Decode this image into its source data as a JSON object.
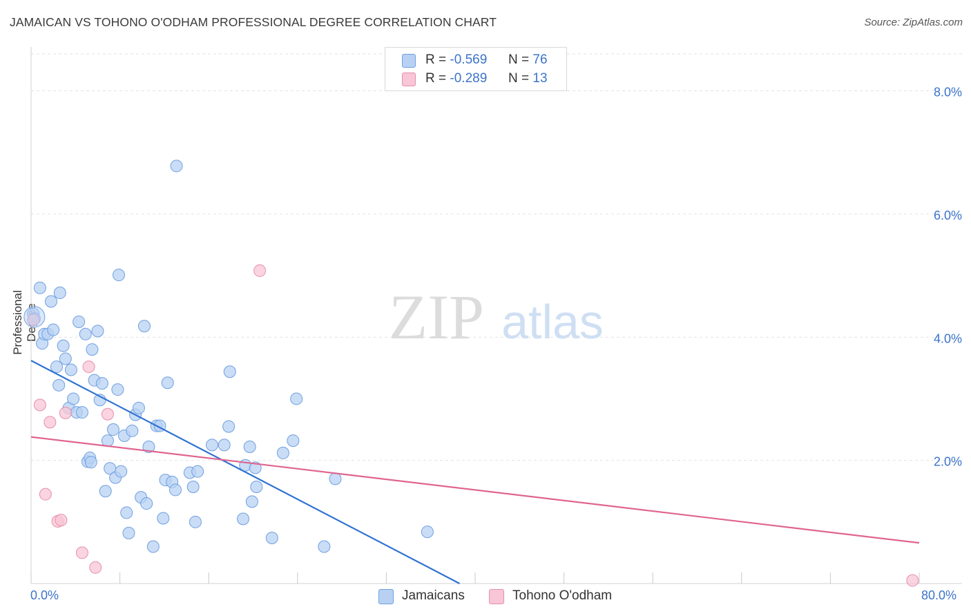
{
  "title": "JAMAICAN VS TOHONO O'ODHAM PROFESSIONAL DEGREE CORRELATION CHART",
  "source": "Source: ZipAtlas.com",
  "watermark": {
    "zip": "ZIP",
    "atlas": "atlas"
  },
  "legend_top": [
    {
      "r_label": "R =",
      "r_value": "-0.569",
      "n_label": "N =",
      "n_value": "76",
      "color": "#b8d1f3",
      "border": "#6e9fe0"
    },
    {
      "r_label": "R =",
      "r_value": "-0.289",
      "n_label": "N =",
      "n_value": "13",
      "color": "#f8c6d6",
      "border": "#e58fab"
    }
  ],
  "legend_bottom": [
    {
      "label": "Jamaicans",
      "color": "#b8d1f3",
      "border": "#6e9fe0"
    },
    {
      "label": "Tohono O'odham",
      "color": "#f8c6d6",
      "border": "#e58fab"
    }
  ],
  "chart_data": {
    "type": "scatter",
    "title": "JAMAICAN VS TOHONO O'ODHAM PROFESSIONAL DEGREE CORRELATION CHART",
    "xlabel": "",
    "ylabel": "Professional Degree",
    "xlim": [
      0,
      80
    ],
    "ylim": [
      0,
      8.6
    ],
    "x_tick_labels": [
      "0.0%",
      "80.0%"
    ],
    "y_ticks": [
      2,
      4,
      6,
      8
    ],
    "y_tick_labels": [
      "2.0%",
      "4.0%",
      "6.0%",
      "8.0%"
    ],
    "grid": true,
    "series": [
      {
        "name": "Jamaicans",
        "color": "#6e9fe0",
        "fill": "#b8d1f3",
        "trend": {
          "x": [
            0,
            38.6
          ],
          "y": [
            3.62,
            0
          ]
        },
        "points": [
          [
            0.2,
            4.38
          ],
          [
            0.3,
            4.3
          ],
          [
            0.8,
            4.8
          ],
          [
            1.0,
            3.9
          ],
          [
            1.2,
            4.05
          ],
          [
            1.5,
            4.05
          ],
          [
            1.8,
            4.58
          ],
          [
            2.0,
            4.12
          ],
          [
            2.3,
            3.52
          ],
          [
            2.5,
            3.22
          ],
          [
            2.6,
            4.72
          ],
          [
            2.9,
            3.86
          ],
          [
            3.1,
            3.65
          ],
          [
            3.4,
            2.85
          ],
          [
            3.6,
            3.47
          ],
          [
            3.8,
            3.0
          ],
          [
            4.1,
            2.78
          ],
          [
            4.3,
            4.25
          ],
          [
            4.6,
            2.78
          ],
          [
            4.9,
            4.05
          ],
          [
            5.1,
            1.98
          ],
          [
            5.3,
            2.04
          ],
          [
            5.5,
            3.8
          ],
          [
            5.7,
            3.3
          ],
          [
            6.0,
            4.1
          ],
          [
            6.2,
            2.98
          ],
          [
            6.4,
            3.25
          ],
          [
            6.7,
            1.5
          ],
          [
            6.9,
            2.32
          ],
          [
            7.1,
            1.87
          ],
          [
            7.4,
            2.5
          ],
          [
            7.6,
            1.72
          ],
          [
            7.8,
            3.15
          ],
          [
            8.1,
            1.82
          ],
          [
            8.4,
            2.4
          ],
          [
            8.6,
            1.15
          ],
          [
            8.8,
            0.82
          ],
          [
            9.1,
            2.48
          ],
          [
            9.4,
            2.74
          ],
          [
            9.7,
            2.85
          ],
          [
            9.9,
            1.4
          ],
          [
            10.2,
            4.18
          ],
          [
            10.4,
            1.3
          ],
          [
            10.6,
            2.22
          ],
          [
            11.0,
            0.6
          ],
          [
            11.3,
            2.56
          ],
          [
            11.6,
            2.56
          ],
          [
            11.9,
            1.06
          ],
          [
            12.1,
            1.68
          ],
          [
            12.3,
            3.26
          ],
          [
            12.7,
            1.65
          ],
          [
            13.0,
            1.52
          ],
          [
            13.1,
            6.78
          ],
          [
            14.3,
            1.8
          ],
          [
            14.6,
            1.57
          ],
          [
            14.8,
            1.0
          ],
          [
            15.0,
            1.82
          ],
          [
            16.3,
            2.25
          ],
          [
            17.4,
            2.25
          ],
          [
            17.8,
            2.55
          ],
          [
            17.9,
            3.44
          ],
          [
            19.1,
            1.05
          ],
          [
            19.3,
            1.92
          ],
          [
            19.7,
            2.22
          ],
          [
            19.9,
            1.33
          ],
          [
            20.2,
            1.88
          ],
          [
            20.3,
            1.57
          ],
          [
            21.7,
            0.74
          ],
          [
            22.7,
            2.12
          ],
          [
            23.6,
            2.32
          ],
          [
            23.9,
            3.0
          ],
          [
            26.4,
            0.6
          ],
          [
            27.4,
            1.7
          ],
          [
            35.7,
            0.84
          ],
          [
            7.9,
            5.01
          ],
          [
            5.4,
            1.97
          ]
        ]
      },
      {
        "name": "Tohono O'odham",
        "color": "#e58fab",
        "fill": "#f8c6d6",
        "trend": {
          "x": [
            0,
            80
          ],
          "y": [
            2.38,
            0.66
          ]
        },
        "points": [
          [
            0.2,
            4.28
          ],
          [
            0.8,
            2.9
          ],
          [
            1.3,
            1.45
          ],
          [
            1.7,
            2.62
          ],
          [
            2.4,
            1.01
          ],
          [
            2.7,
            1.03
          ],
          [
            3.1,
            2.77
          ],
          [
            4.6,
            0.5
          ],
          [
            5.2,
            3.52
          ],
          [
            5.8,
            0.26
          ],
          [
            6.9,
            2.75
          ],
          [
            20.6,
            5.08
          ],
          [
            79.4,
            0.05
          ]
        ]
      }
    ]
  }
}
